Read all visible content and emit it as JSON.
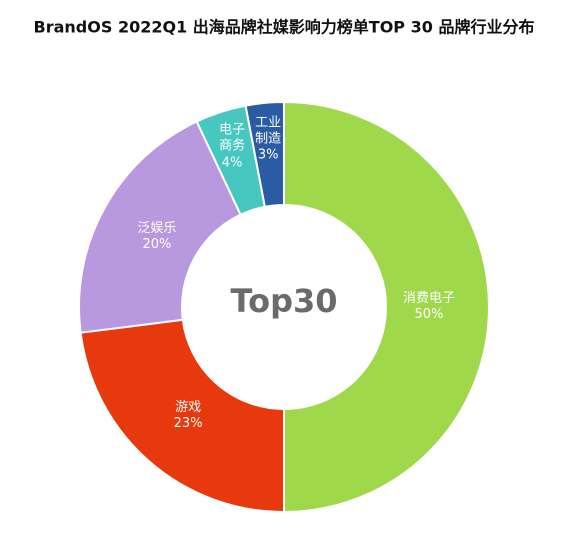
{
  "chart_data": {
    "type": "donut",
    "title": "BrandOS 2022Q1 出海品牌社媒影响力榜单TOP 30 品牌行业分布",
    "center_label": "Top30",
    "categories": [
      "消费电子",
      "游戏",
      "泛娱乐",
      "电子商务",
      "工业制造"
    ],
    "values": [
      50,
      23,
      20,
      4,
      3
    ],
    "value_labels": [
      "50%",
      "23%",
      "20%",
      "4%",
      "3%"
    ],
    "colors": [
      "#a0d84b",
      "#e8390e",
      "#b898de",
      "#46c8c0",
      "#2b5ba2"
    ]
  }
}
